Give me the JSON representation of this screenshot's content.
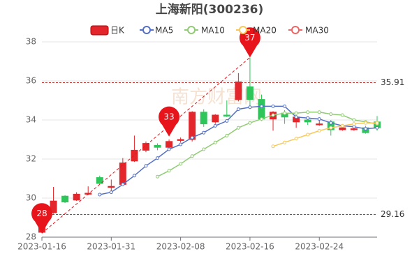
{
  "chart_data": {
    "type": "candlestick",
    "title": "上海新阳(300236)",
    "watermark": "南方财富网",
    "categories": [
      "2023-01-16",
      null,
      null,
      null,
      null,
      null,
      "2023-01-31",
      null,
      null,
      null,
      null,
      null,
      "2023-02-08",
      null,
      null,
      null,
      null,
      null,
      "2023-02-16",
      null,
      null,
      null,
      null,
      null,
      "2023-02-24",
      null,
      null,
      null,
      null,
      null
    ],
    "candles": {
      "name": "日K",
      "up_color": "#e3262b",
      "down_color": "#2ec55a",
      "open": [
        28.25,
        29.25,
        30.1,
        29.9,
        30.2,
        31.05,
        30.55,
        30.7,
        31.9,
        32.45,
        32.7,
        32.6,
        32.95,
        33.0,
        34.4,
        33.9,
        34.25,
        35.05,
        35.7,
        35.05,
        34.05,
        34.35,
        33.9,
        34.0,
        33.75,
        33.9,
        33.5,
        33.5,
        33.6,
        33.9
      ],
      "close": [
        28.9,
        29.85,
        29.8,
        30.2,
        30.25,
        30.75,
        30.6,
        31.8,
        32.45,
        32.8,
        32.6,
        32.9,
        33.0,
        34.4,
        33.8,
        34.25,
        34.2,
        35.95,
        35.05,
        34.05,
        34.4,
        34.15,
        34.15,
        33.9,
        33.8,
        33.5,
        33.6,
        33.55,
        33.35,
        33.6
      ],
      "high": [
        29.1,
        30.57,
        30.15,
        30.3,
        30.6,
        31.15,
        30.95,
        32.05,
        33.2,
        32.9,
        32.8,
        33.0,
        33.1,
        34.45,
        34.55,
        34.3,
        35.0,
        36.4,
        37.2,
        35.3,
        34.45,
        34.5,
        34.2,
        34.05,
        34.0,
        34.0,
        33.65,
        33.6,
        33.7,
        34.2
      ],
      "low": [
        28.2,
        29.2,
        29.75,
        29.85,
        30.15,
        30.7,
        30.3,
        30.65,
        31.85,
        32.35,
        32.45,
        32.5,
        32.85,
        32.9,
        33.65,
        33.8,
        34.15,
        34.95,
        34.6,
        33.95,
        33.45,
        33.8,
        33.6,
        33.75,
        33.7,
        33.2,
        33.45,
        33.45,
        33.3,
        33.45
      ]
    },
    "series": [
      {
        "name": "MA5",
        "color": "#5470c6",
        "values": [
          null,
          null,
          null,
          null,
          null,
          30.18,
          30.3,
          30.7,
          31.15,
          31.65,
          32.05,
          32.5,
          32.75,
          33.1,
          33.35,
          33.7,
          33.95,
          34.55,
          34.65,
          34.7,
          34.7,
          34.7,
          34.15,
          34.1,
          34.05,
          33.85,
          33.7,
          33.65,
          33.55,
          33.6
        ]
      },
      {
        "name": "MA10",
        "color": "#91cc75",
        "values": [
          null,
          null,
          null,
          null,
          null,
          null,
          null,
          null,
          null,
          null,
          31.1,
          31.4,
          31.75,
          32.15,
          32.5,
          32.85,
          33.2,
          33.6,
          33.85,
          34.05,
          34.25,
          34.35,
          34.35,
          34.4,
          34.4,
          34.3,
          34.25,
          34.0,
          33.9,
          33.8
        ]
      },
      {
        "name": "MA20",
        "color": "#fac858",
        "values": [
          null,
          null,
          null,
          null,
          null,
          null,
          null,
          null,
          null,
          null,
          null,
          null,
          null,
          null,
          null,
          null,
          null,
          null,
          null,
          null,
          32.65,
          32.85,
          33.05,
          33.25,
          33.45,
          33.6,
          33.7,
          33.8,
          33.85,
          33.85
        ]
      },
      {
        "name": "MA30",
        "color": "#ee6666",
        "values": [
          null,
          null,
          null,
          null,
          null,
          null,
          null,
          null,
          null,
          null,
          null,
          null,
          null,
          null,
          null,
          null,
          null,
          null,
          null,
          null,
          null,
          null,
          null,
          null,
          null,
          null,
          null,
          null,
          null,
          null
        ]
      }
    ],
    "mark_points": [
      {
        "category_index": 0,
        "value": 28.2,
        "value_label": "28"
      },
      {
        "category_index": 11,
        "value": 33.15,
        "value_label": "33"
      },
      {
        "category_index": 18,
        "value": 37.2,
        "value_label": "37"
      }
    ],
    "mark_color": "#e8141c",
    "mark_lines": [
      35.91,
      29.16
    ],
    "ylim": [
      28,
      38
    ],
    "yticks": [
      28,
      30,
      32,
      34,
      36,
      38
    ],
    "grid": true
  }
}
